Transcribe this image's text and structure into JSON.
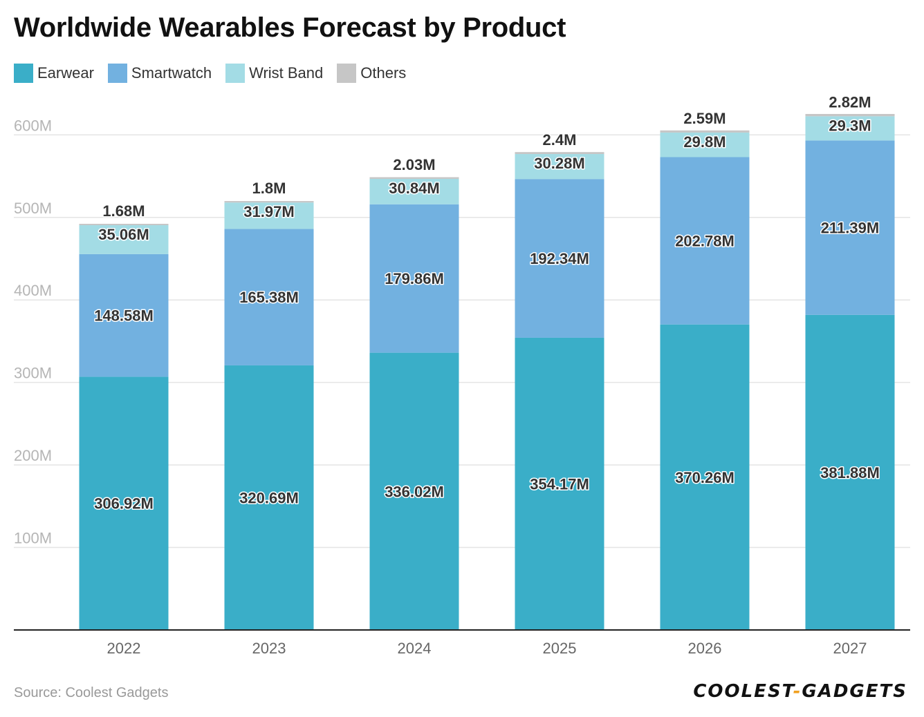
{
  "chart_data": {
    "type": "bar",
    "stacked": true,
    "title": "Worldwide Wearables Forecast by Product",
    "categories": [
      "2022",
      "2023",
      "2024",
      "2025",
      "2026",
      "2027"
    ],
    "series": [
      {
        "name": "Earwear",
        "color": "#3aaec8",
        "values": [
          306.92,
          320.69,
          336.02,
          354.17,
          370.26,
          381.88
        ],
        "labels": [
          "306.92M",
          "320.69M",
          "336.02M",
          "354.17M",
          "370.26M",
          "381.88M"
        ]
      },
      {
        "name": "Smartwatch",
        "color": "#72b1e0",
        "values": [
          148.58,
          165.38,
          179.86,
          192.34,
          202.78,
          211.39
        ],
        "labels": [
          "148.58M",
          "165.38M",
          "179.86M",
          "192.34M",
          "202.78M",
          "211.39M"
        ]
      },
      {
        "name": "Wrist Band",
        "color": "#a3dce5",
        "values": [
          35.06,
          31.97,
          30.84,
          30.28,
          29.8,
          29.3
        ],
        "labels": [
          "35.06M",
          "31.97M",
          "30.84M",
          "30.28M",
          "29.8M",
          "29.3M"
        ]
      },
      {
        "name": "Others",
        "color": "#c6c6c6",
        "values": [
          1.68,
          1.8,
          2.03,
          2.4,
          2.59,
          2.82
        ],
        "labels": [
          "1.68M",
          "1.8M",
          "2.03M",
          "2.4M",
          "2.59M",
          "2.82M"
        ]
      }
    ],
    "yticks": [
      100,
      200,
      300,
      400,
      500,
      600
    ],
    "ytick_labels": [
      "100M",
      "200M",
      "300M",
      "400M",
      "500M",
      "600M"
    ],
    "ylim": [
      0,
      630
    ],
    "grid": true,
    "legend_position": "top-left"
  },
  "source": "Source: Coolest Gadgets",
  "logo": {
    "part1": "COOLEST",
    "dash": "-",
    "part2": "GADGETS"
  }
}
